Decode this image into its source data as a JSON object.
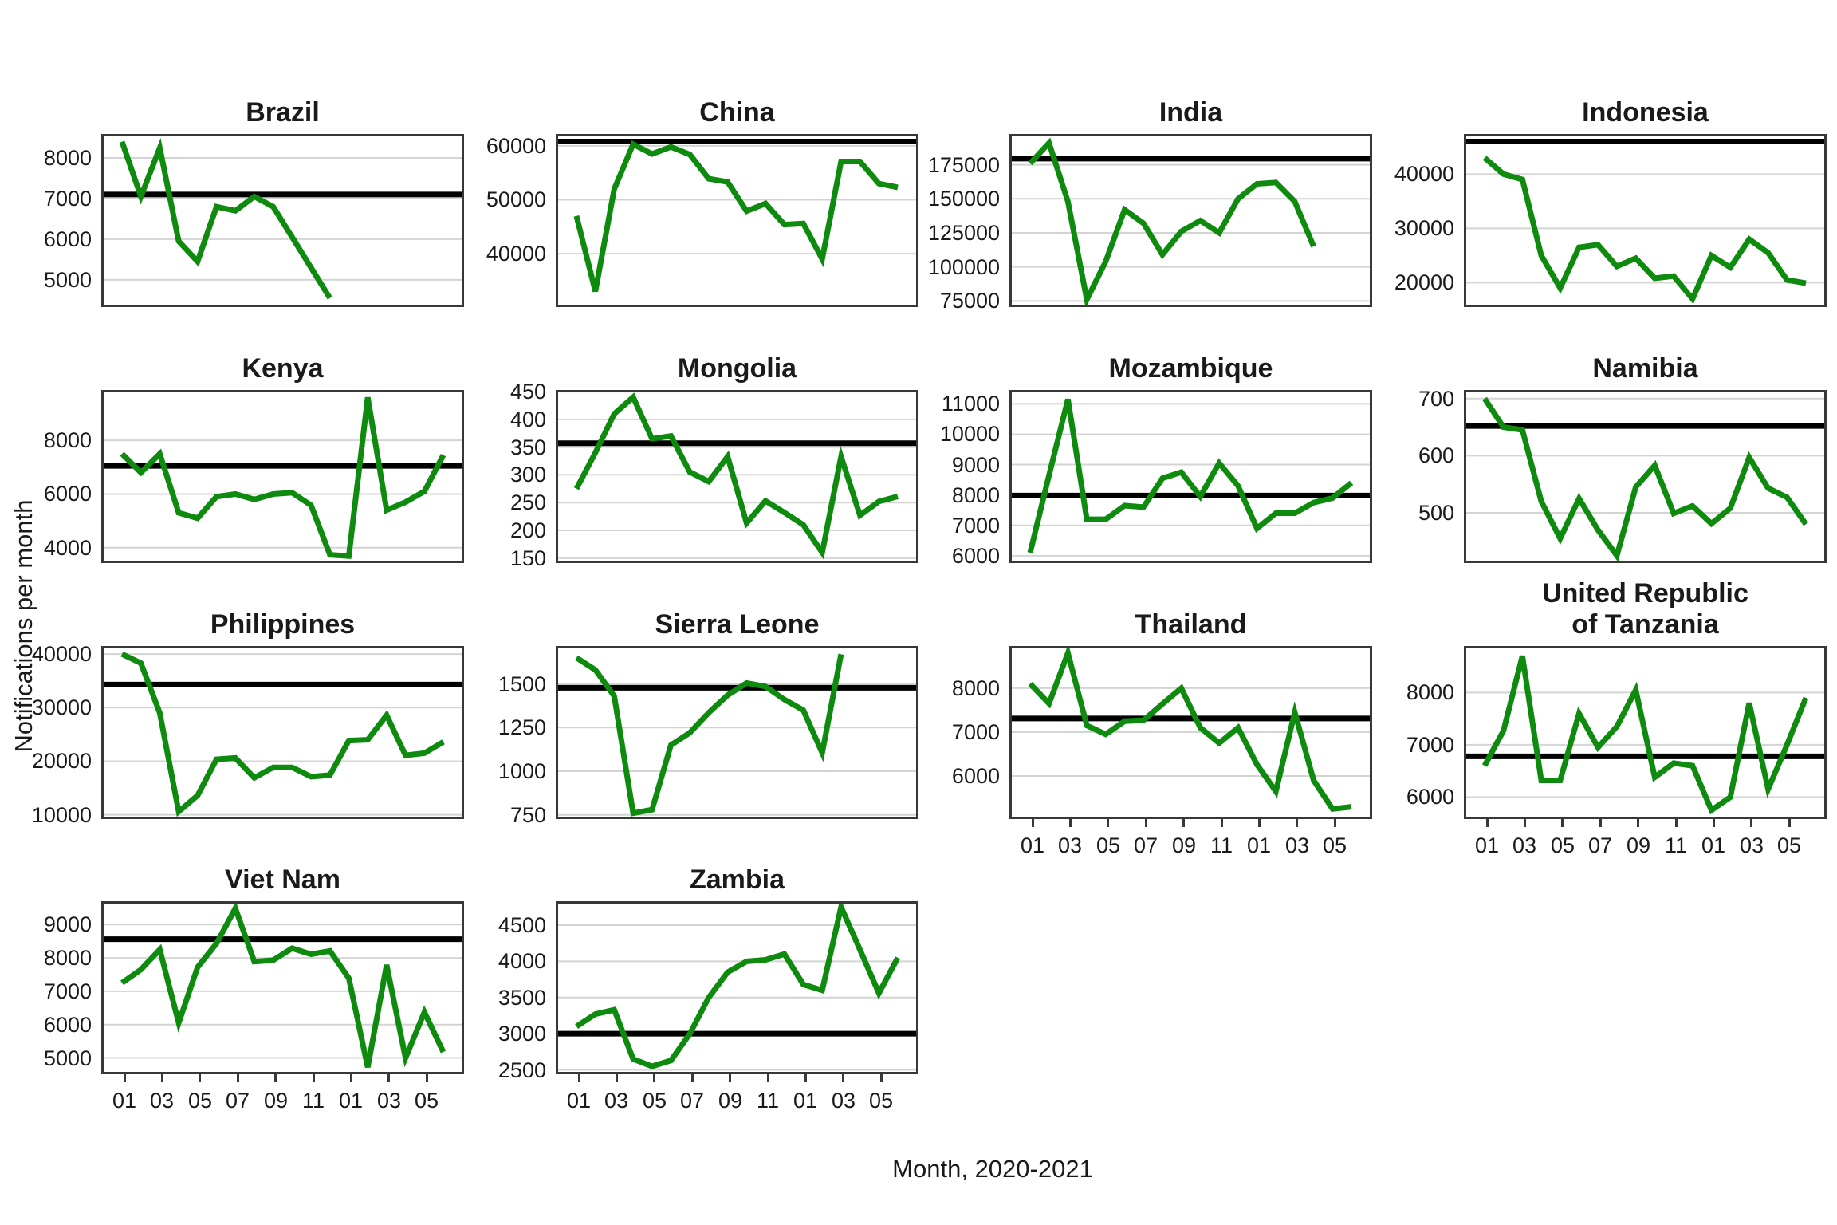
{
  "figure": {
    "ylabel": "Notifications per month",
    "xlabel": "Month, 2020-2021",
    "line_color": "#0e8a0e",
    "reference_line_color": "#000000",
    "gridline_color": "#d4d4d4",
    "x_tick_labels": [
      "01",
      "03",
      "05",
      "07",
      "09",
      "11",
      "01",
      "03",
      "05"
    ]
  },
  "chart_data": [
    {
      "type": "line",
      "title": "Brazil",
      "ref_line": 7100,
      "ylim": [
        4330,
        8590
      ],
      "y_ticks": [
        5000,
        6000,
        7000,
        8000
      ],
      "show_x_axis": false,
      "values": [
        8400,
        7050,
        8250,
        5950,
        5450,
        6800,
        6700,
        7050,
        6800,
        6050,
        5300,
        4550
      ]
    },
    {
      "type": "line",
      "title": "China",
      "ref_line": 60800,
      "ylim": [
        30100,
        62200
      ],
      "y_ticks": [
        40000,
        50000,
        60000
      ],
      "show_x_axis": false,
      "values": [
        47000,
        33000,
        52000,
        60300,
        58500,
        59800,
        58400,
        53900,
        53300,
        47900,
        49300,
        45400,
        45600,
        39000,
        57100,
        57100,
        53000,
        52300
      ]
    },
    {
      "type": "line",
      "title": "India",
      "ref_line": 179500,
      "ylim": [
        70500,
        197600
      ],
      "y_ticks": [
        75000,
        100000,
        125000,
        150000,
        175000
      ],
      "show_x_axis": false,
      "values": [
        176000,
        191000,
        148000,
        76000,
        104000,
        142000,
        132000,
        109000,
        126000,
        134000,
        125000,
        150000,
        161000,
        162000,
        148000,
        115000
      ]
    },
    {
      "type": "line",
      "title": "Indonesia",
      "ref_line": 46000,
      "ylim": [
        15500,
        47400
      ],
      "y_ticks": [
        20000,
        30000,
        40000
      ],
      "show_x_axis": false,
      "values": [
        43000,
        40000,
        39000,
        25000,
        19000,
        26500,
        27000,
        23000,
        24500,
        20800,
        21200,
        17000,
        25000,
        22800,
        28000,
        25500,
        20500,
        19900
      ]
    },
    {
      "type": "line",
      "title": "Kenya",
      "ref_line": 7050,
      "ylim": [
        3430,
        9875
      ],
      "y_ticks": [
        4000,
        6000,
        8000
      ],
      "show_x_axis": false,
      "values": [
        7500,
        6800,
        7500,
        5300,
        5100,
        5900,
        6000,
        5800,
        6000,
        6050,
        5580,
        3740,
        3690,
        9600,
        5400,
        5700,
        6100,
        7450
      ]
    },
    {
      "type": "line",
      "title": "Mongolia",
      "ref_line": 357,
      "ylim": [
        141,
        453
      ],
      "y_ticks": [
        150,
        200,
        250,
        300,
        350,
        400,
        450
      ],
      "show_x_axis": false,
      "values": [
        275,
        340,
        410,
        440,
        365,
        370,
        305,
        288,
        333,
        213,
        253,
        232,
        210,
        160,
        333,
        227,
        252,
        261
      ]
    },
    {
      "type": "line",
      "title": "Mozambique",
      "ref_line": 7980,
      "ylim": [
        5760,
        11455
      ],
      "y_ticks": [
        6000,
        7000,
        8000,
        9000,
        10000,
        11000
      ],
      "show_x_axis": false,
      "values": [
        6100,
        8650,
        11150,
        7200,
        7200,
        7650,
        7600,
        8550,
        8750,
        7950,
        9050,
        8300,
        6900,
        7400,
        7400,
        7750,
        7900,
        8400
      ]
    },
    {
      "type": "line",
      "title": "Namibia",
      "ref_line": 652,
      "ylim": [
        412,
        715
      ],
      "y_ticks": [
        500,
        600,
        700
      ],
      "show_x_axis": false,
      "values": [
        700,
        650,
        645,
        520,
        455,
        525,
        470,
        425,
        545,
        583,
        499,
        512,
        481,
        508,
        597,
        543,
        527,
        480
      ]
    },
    {
      "type": "line",
      "title": "Philippines",
      "ref_line": 34300,
      "ylim": [
        9200,
        41500
      ],
      "y_ticks": [
        10000,
        20000,
        30000,
        40000
      ],
      "show_x_axis": false,
      "values": [
        40000,
        38300,
        29000,
        10600,
        13600,
        20350,
        20600,
        16900,
        18850,
        18850,
        17100,
        17400,
        23850,
        24000,
        28600,
        21100,
        21500,
        23600
      ]
    },
    {
      "type": "line",
      "title": "Sierra Leone",
      "ref_line": 1478,
      "ylim": [
        726,
        1717
      ],
      "y_ticks": [
        750,
        1000,
        1250,
        1500
      ],
      "show_x_axis": false,
      "values": [
        1650,
        1580,
        1430,
        760,
        780,
        1150,
        1220,
        1335,
        1435,
        1505,
        1485,
        1410,
        1350,
        1105,
        1670
      ]
    },
    {
      "type": "line",
      "title": "Thailand",
      "ref_line": 7310,
      "ylim": [
        5020,
        8960
      ],
      "y_ticks": [
        6000,
        7000,
        8000
      ],
      "show_x_axis": true,
      "values": [
        8100,
        7650,
        8800,
        7150,
        6950,
        7250,
        7270,
        7640,
        8000,
        7100,
        6750,
        7100,
        6260,
        5650,
        7450,
        5900,
        5250,
        5300
      ]
    },
    {
      "type": "line",
      "title": "United Republic\nof Tanzania",
      "ref_line": 6780,
      "ylim": [
        5580,
        8890
      ],
      "y_ticks": [
        6000,
        7000,
        8000
      ],
      "show_x_axis": true,
      "values": [
        6600,
        7270,
        8700,
        6320,
        6320,
        7600,
        6950,
        7350,
        8050,
        6380,
        6650,
        6600,
        5750,
        6000,
        7800,
        6150,
        7000,
        7900
      ]
    },
    {
      "type": "line",
      "title": "Viet Nam",
      "ref_line": 8560,
      "ylim": [
        4510,
        9700
      ],
      "y_ticks": [
        5000,
        6000,
        7000,
        8000,
        9000
      ],
      "show_x_axis": true,
      "values": [
        7250,
        7650,
        8250,
        6050,
        7720,
        8430,
        9490,
        7890,
        7930,
        8290,
        8110,
        8210,
        7390,
        4720,
        7790,
        5000,
        6370,
        5180
      ]
    },
    {
      "type": "line",
      "title": "Zambia",
      "ref_line": 3000,
      "ylim": [
        2440,
        4830
      ],
      "y_ticks": [
        2500,
        3000,
        3500,
        4000,
        4500
      ],
      "show_x_axis": true,
      "values": [
        3100,
        3270,
        3330,
        2650,
        2550,
        2630,
        3000,
        3500,
        3850,
        4000,
        4020,
        4100,
        3680,
        3600,
        4750,
        4160,
        3560,
        4050
      ]
    }
  ],
  "months": [
    "2020-01",
    "2020-02",
    "2020-03",
    "2020-04",
    "2020-05",
    "2020-06",
    "2020-07",
    "2020-08",
    "2020-09",
    "2020-10",
    "2020-11",
    "2020-12",
    "2021-01",
    "2021-02",
    "2021-03",
    "2021-04",
    "2021-05",
    "2021-06"
  ]
}
